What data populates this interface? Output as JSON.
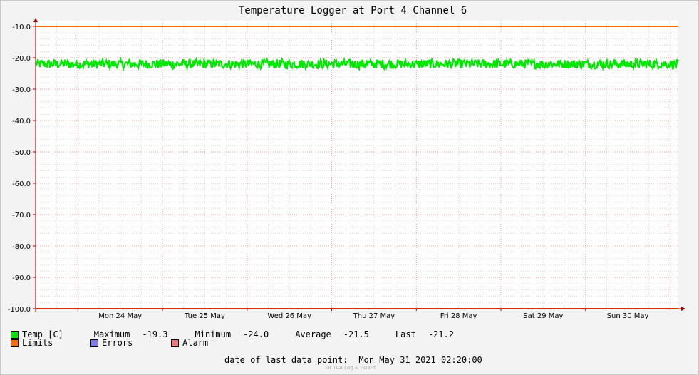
{
  "chart_data": {
    "type": "line",
    "title": "Temperature Logger at Port 4 Channel 6",
    "y_ticks": [
      "-10.0",
      "-20.0",
      "-30.0",
      "-40.0",
      "-50.0",
      "-60.0",
      "-70.0",
      "-80.0",
      "-90.0",
      "-100.0"
    ],
    "ylim": [
      -100,
      -10
    ],
    "x_ticks": [
      "Mon 24 May",
      "Tue 25 May",
      "Wed 26 May",
      "Thu 27 May",
      "Fri 28 May",
      "Sat 29 May",
      "Sun 30 May"
    ],
    "x_range": [
      "2021-05-23 12:00",
      "2021-05-31 02:20"
    ],
    "grid": true,
    "series": [
      {
        "name": "Temp [C]",
        "color": "#00e800",
        "band_low": -23.5,
        "band_high": -20.5,
        "mean": -21.5
      },
      {
        "name": "Limits",
        "color": "#ff6a00",
        "upper": -10.0,
        "lower": -100.0
      }
    ]
  },
  "legend": {
    "temp_label": "Temp [C]",
    "maximum_label": "Maximum",
    "maximum_value": "-19.3",
    "minimum_label": "Minimum",
    "minimum_value": "-24.0",
    "average_label": "Average",
    "average_value": "-21.5",
    "last_label": "Last",
    "last_value": "-21.2",
    "limits_label": "Limits",
    "errors_label": "Errors",
    "alarm_label": "Alarm",
    "colors": {
      "temp": "#00e800",
      "limits": "#ff6a00",
      "errors": "#7b7bf0",
      "alarm": "#f07b7b"
    }
  },
  "footer": {
    "date_label": "date of last data point:",
    "date_value": "Mon May 31 2021 02:20:00",
    "watermark": "OCTAA Log & Guard"
  }
}
